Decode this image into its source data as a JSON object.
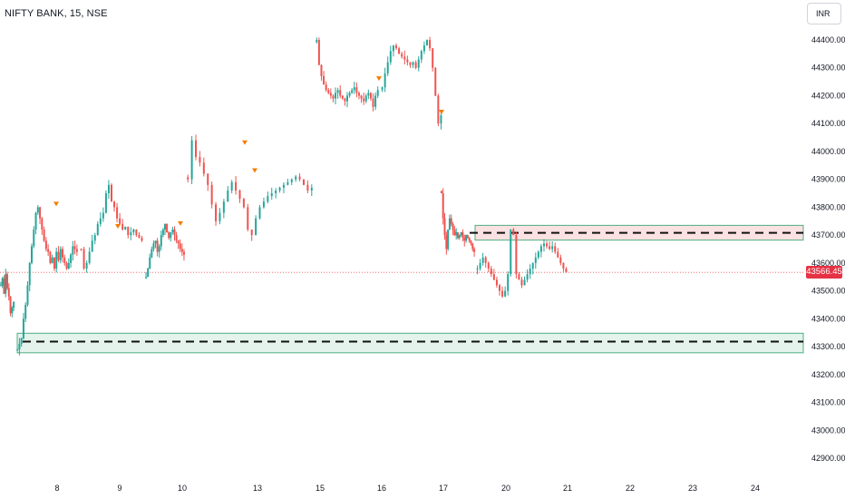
{
  "header": {
    "title": "NIFTY BANK, 15, NSE",
    "currency": "INR"
  },
  "colors": {
    "up": "#26a69a",
    "down": "#ef5350",
    "marker": "#f57c00",
    "support_fill": "#e4f3ec",
    "support_border": "#4caf82",
    "resistance_fill": "#fbe1e1",
    "last_price_tag": "#e53244"
  },
  "chart_data": {
    "type": "candlestick",
    "title": "NIFTY BANK, 15, NSE",
    "currency": "INR",
    "ylim": [
      42850,
      44480
    ],
    "y_ticks": [
      "44400.00",
      "44300.00",
      "44200.00",
      "44100.00",
      "44000.00",
      "43900.00",
      "43800.00",
      "43700.00",
      "43600.00",
      "43500.00",
      "43400.00",
      "43300.00",
      "43200.00",
      "43100.00",
      "43000.00",
      "42900.00"
    ],
    "x_ticks": [
      "8",
      "9",
      "10",
      "13",
      "15",
      "16",
      "17",
      "20",
      "21",
      "22",
      "23",
      "24"
    ],
    "last_price": "43566.45",
    "support_zone": {
      "low": 43278,
      "high": 43348,
      "level": 43318
    },
    "resistance_zone": {
      "low": 43682,
      "high": 43735,
      "level": 43708
    },
    "sessions": [
      {
        "day": "7",
        "points": [
          43520,
          43545,
          43490,
          43560,
          43510,
          43480,
          43420,
          43440,
          43460
        ]
      },
      {
        "day": "8",
        "points": [
          43290,
          43310,
          43330,
          43400,
          43450,
          43520,
          43600,
          43660,
          43720,
          43780,
          43800,
          43760,
          43720,
          43680,
          43650,
          43640,
          43600,
          43620,
          43580,
          43640,
          43610,
          43650,
          43620,
          43600,
          43580,
          43600,
          43630,
          43660,
          43650,
          43640
        ]
      },
      {
        "day": "9",
        "points": [
          43650,
          43580,
          43600,
          43640,
          43680,
          43700,
          43740,
          43760,
          43780,
          43850,
          43880,
          43820,
          43800,
          43760,
          43740,
          43720,
          43730,
          43700,
          43710,
          43720,
          43700,
          43690,
          43680
        ]
      },
      {
        "day": "10",
        "points": [
          43550,
          43580,
          43620,
          43650,
          43670,
          43680,
          43640,
          43660,
          43700,
          43720,
          43740,
          43710,
          43690,
          43710,
          43720,
          43700,
          43680,
          43670,
          43650,
          43640,
          43630
        ]
      },
      {
        "day": "13",
        "points": [
          43900,
          44040,
          43980,
          43960,
          43920,
          43880,
          43810,
          43750,
          43780,
          43820,
          43860,
          43890,
          43860,
          43830,
          43800,
          43720,
          43700,
          43760,
          43800,
          43820,
          43840,
          43850,
          43860,
          43870,
          43880,
          43890,
          43900,
          43910,
          43900,
          43880,
          43860,
          43870
        ]
      },
      {
        "day": "15",
        "points": [
          44400,
          44310,
          44270,
          44240,
          44220,
          44210,
          44200,
          44190,
          44210,
          44220,
          44200,
          44190,
          44180,
          44200,
          44210,
          44220,
          44230,
          44210,
          44200,
          44190,
          44180,
          44200,
          44210,
          44190,
          44160,
          44200,
          44220
        ]
      },
      {
        "day": "16",
        "points": [
          44230,
          44280,
          44320,
          44360,
          44380,
          44370,
          44350,
          44340,
          44330,
          44320,
          44310,
          44320,
          44300,
          44330,
          44360,
          44380,
          44400,
          44370,
          44300,
          44200,
          44100,
          44130
        ]
      },
      {
        "day": "17",
        "points": [
          43850,
          43760,
          43700,
          43650,
          43720,
          43760,
          43740,
          43720,
          43700,
          43710,
          43690,
          43700,
          43710,
          43690,
          43680,
          43700,
          43690,
          43680,
          43670,
          43650,
          43640
        ]
      },
      {
        "day": "20",
        "points": [
          43580,
          43600,
          43620,
          43600,
          43580,
          43560,
          43540,
          43520,
          43500,
          43480,
          43500,
          43560,
          43720,
          43700,
          43560,
          43540,
          43520,
          43540,
          43560,
          43580,
          43600,
          43620,
          43640,
          43660,
          43670,
          43660,
          43650,
          43660,
          43640,
          43620,
          43600,
          43580,
          43566
        ]
      }
    ],
    "sell_markers": [
      {
        "day": "8",
        "price": 43800
      },
      {
        "day": "9",
        "price": 43720
      },
      {
        "day": "10",
        "price": 43730
      },
      {
        "day": "13",
        "price": 44020
      },
      {
        "day": "13",
        "price": 43920
      },
      {
        "day": "16",
        "price": 44250
      },
      {
        "day": "16",
        "price": 44130
      }
    ]
  }
}
